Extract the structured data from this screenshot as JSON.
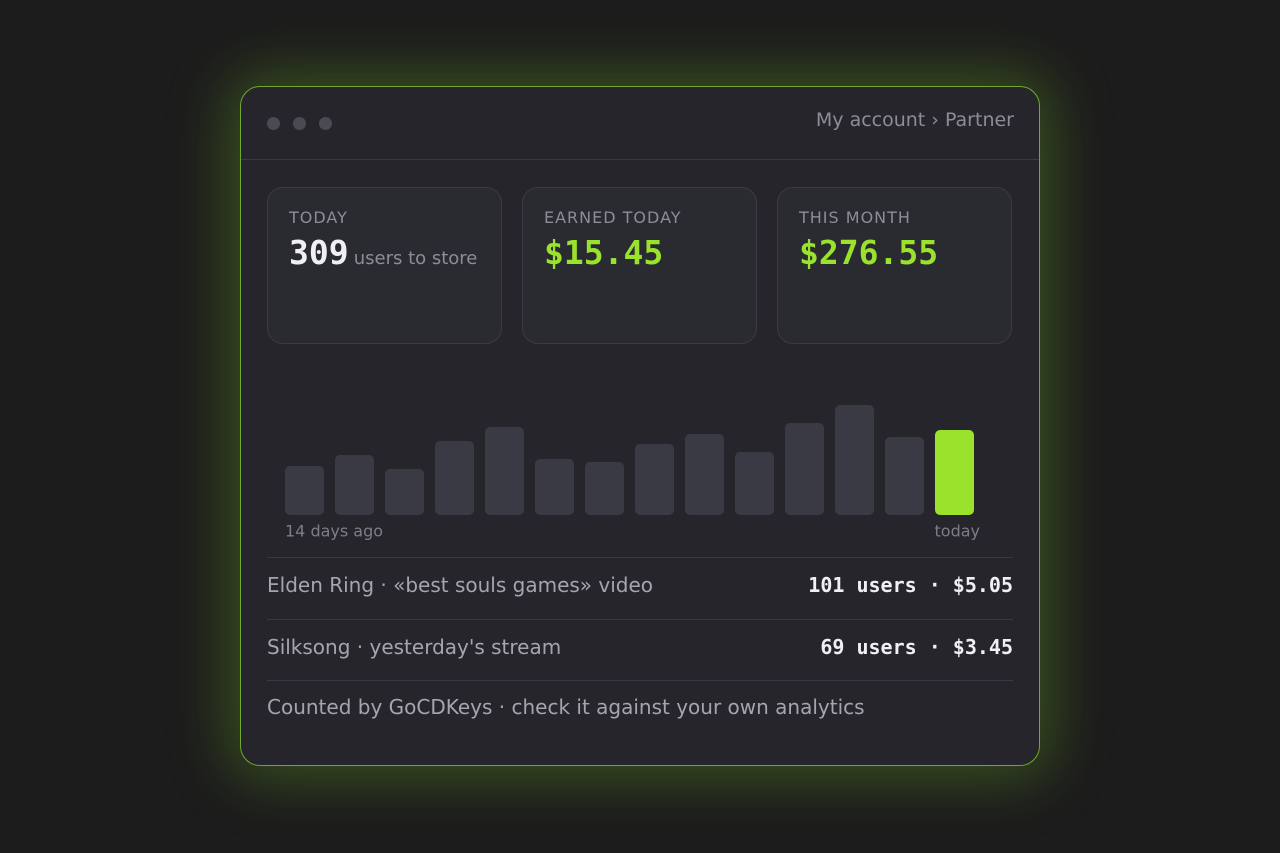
{
  "window": {
    "breadcrumb": "My account › Partner"
  },
  "stats": [
    {
      "label": "TODAY",
      "value": "309",
      "unit": "users to store"
    },
    {
      "label": "EARNED TODAY",
      "value": "$15.45"
    },
    {
      "label": "THIS MONTH",
      "value": "$276.55"
    }
  ],
  "chart_data": {
    "type": "bar",
    "categories": [
      "14 days ago",
      null,
      null,
      null,
      null,
      null,
      null,
      null,
      null,
      null,
      null,
      null,
      null,
      "today"
    ],
    "values": [
      49,
      60,
      46,
      74,
      88,
      56,
      53,
      71,
      81,
      63,
      92,
      110,
      78,
      85
    ],
    "color": "#3a3a44",
    "highlight_color": "#9be22d"
  },
  "rows": [
    {
      "title": "Elden Ring · «best souls games» video",
      "stats": "101 users · $5.05"
    },
    {
      "title": "Silksong · yesterday's stream",
      "stats": "69 users · $3.45"
    }
  ],
  "footer": "Counted by GoCDKeys · check it against your own analytics"
}
